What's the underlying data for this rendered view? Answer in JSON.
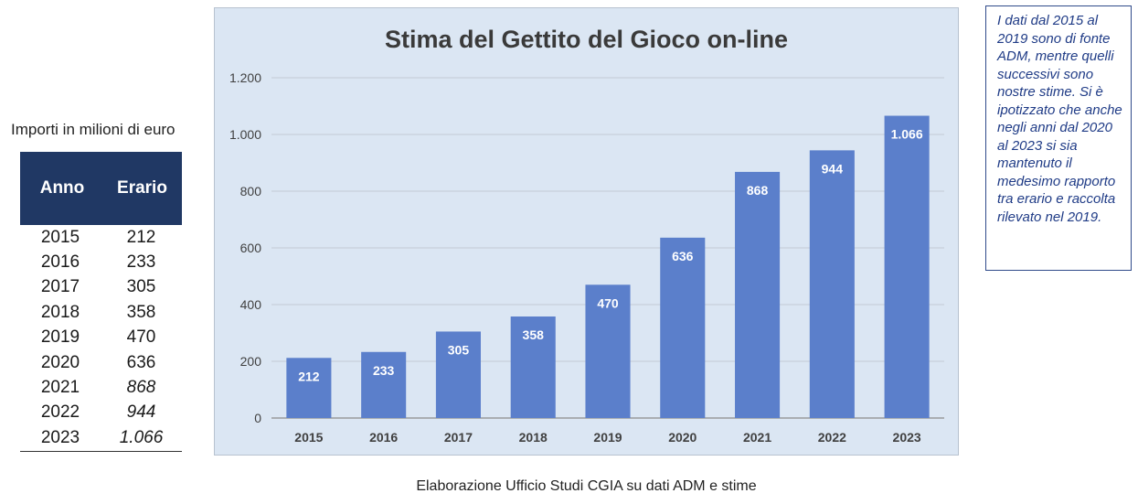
{
  "units_label": "Importi in milioni di euro",
  "table": {
    "headers": [
      "Anno",
      "Erario"
    ],
    "rows": [
      {
        "year": "2015",
        "value": "212",
        "italic": false
      },
      {
        "year": "2016",
        "value": "233",
        "italic": false
      },
      {
        "year": "2017",
        "value": "305",
        "italic": false
      },
      {
        "year": "2018",
        "value": "358",
        "italic": false
      },
      {
        "year": "2019",
        "value": "470",
        "italic": false
      },
      {
        "year": "2020",
        "value": "636",
        "italic": false
      },
      {
        "year": "2021",
        "value": "868",
        "italic": true
      },
      {
        "year": "2022",
        "value": "944",
        "italic": true
      },
      {
        "year": "2023",
        "value": "1.066",
        "italic": true
      }
    ]
  },
  "note": "I dati dal 2015 al 2019 sono di fonte ADM, mentre quelli successivi sono nostre stime. Si è ipotizzato che anche negli anni dal 2020 al 2023 si sia mantenuto il medesimo rapporto tra erario e raccolta rilevato nel 2019.",
  "source": "Elaborazione Ufficio Studi CGIA su dati ADM e stime",
  "colors": {
    "bar": "#5b7fcb",
    "panel": "#dbe6f3",
    "header": "#203864",
    "note": "#1f3b86"
  },
  "chart_data": {
    "type": "bar",
    "title": "Stima del Gettito del Gioco on-line",
    "xlabel": "",
    "ylabel": "",
    "categories": [
      "2015",
      "2016",
      "2017",
      "2018",
      "2019",
      "2020",
      "2021",
      "2022",
      "2023"
    ],
    "values": [
      212,
      233,
      305,
      358,
      470,
      636,
      868,
      944,
      1066
    ],
    "value_labels": [
      "212",
      "233",
      "305",
      "358",
      "470",
      "636",
      "868",
      "944",
      "1.066"
    ],
    "ylim": [
      0,
      1200
    ],
    "yticks": [
      0,
      200,
      400,
      600,
      800,
      1000,
      1200
    ],
    "ytick_labels": [
      "0",
      "200",
      "400",
      "600",
      "800",
      "1.000",
      "1.200"
    ],
    "grid": true,
    "legend": "none"
  }
}
